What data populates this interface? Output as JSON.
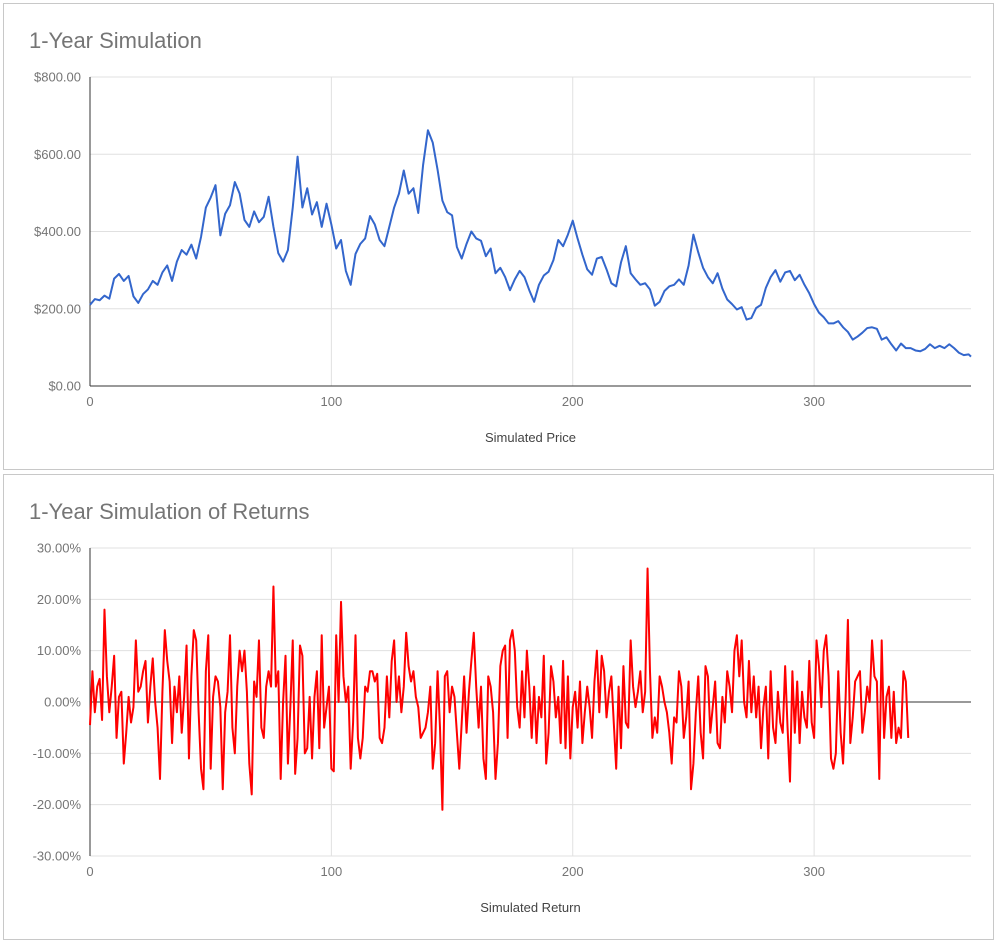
{
  "chart_data": [
    {
      "type": "line",
      "title": "1-Year Simulation",
      "xlabel": "Simulated Price",
      "ylabel": "",
      "xlim": [
        0,
        365
      ],
      "ylim": [
        0,
        800
      ],
      "x_ticks": [
        0,
        100,
        200,
        300
      ],
      "x_tick_labels": [
        "0",
        "100",
        "200",
        "300"
      ],
      "y_ticks": [
        0,
        200,
        400,
        600,
        800
      ],
      "y_tick_labels": [
        "$0.00",
        "$200.00",
        "$400.00",
        "$600.00",
        "$800.00"
      ],
      "grid": true,
      "legend": "none",
      "colors": {
        "line": "#3366cc",
        "grid": "#e0e0e0",
        "axis": "#333333"
      },
      "series": [
        {
          "points": [
            [
              0,
              210
            ],
            [
              2,
              225
            ],
            [
              4,
              222
            ],
            [
              6,
              234
            ],
            [
              8,
              226
            ],
            [
              10,
              278
            ],
            [
              12,
              290
            ],
            [
              14,
              272
            ],
            [
              16,
              285
            ],
            [
              18,
              232
            ],
            [
              20,
              215
            ],
            [
              22,
              238
            ],
            [
              24,
              250
            ],
            [
              26,
              272
            ],
            [
              28,
              262
            ],
            [
              30,
              294
            ],
            [
              32,
              312
            ],
            [
              34,
              272
            ],
            [
              36,
              322
            ],
            [
              38,
              352
            ],
            [
              40,
              340
            ],
            [
              42,
              366
            ],
            [
              44,
              330
            ],
            [
              46,
              386
            ],
            [
              48,
              462
            ],
            [
              50,
              488
            ],
            [
              52,
              520
            ],
            [
              54,
              390
            ],
            [
              56,
              446
            ],
            [
              58,
              468
            ],
            [
              60,
              528
            ],
            [
              62,
              498
            ],
            [
              64,
              430
            ],
            [
              66,
              412
            ],
            [
              68,
              452
            ],
            [
              70,
              424
            ],
            [
              72,
              438
            ],
            [
              74,
              490
            ],
            [
              76,
              412
            ],
            [
              78,
              344
            ],
            [
              80,
              322
            ],
            [
              82,
              352
            ],
            [
              84,
              462
            ],
            [
              86,
              594
            ],
            [
              88,
              462
            ],
            [
              90,
              512
            ],
            [
              92,
              444
            ],
            [
              94,
              476
            ],
            [
              96,
              412
            ],
            [
              98,
              472
            ],
            [
              100,
              418
            ],
            [
              102,
              356
            ],
            [
              104,
              378
            ],
            [
              106,
              298
            ],
            [
              108,
              262
            ],
            [
              110,
              342
            ],
            [
              112,
              368
            ],
            [
              114,
              382
            ],
            [
              116,
              440
            ],
            [
              118,
              418
            ],
            [
              120,
              378
            ],
            [
              122,
              362
            ],
            [
              124,
              412
            ],
            [
              126,
              462
            ],
            [
              128,
              498
            ],
            [
              130,
              558
            ],
            [
              132,
              498
            ],
            [
              134,
              512
            ],
            [
              136,
              448
            ],
            [
              138,
              572
            ],
            [
              140,
              662
            ],
            [
              142,
              630
            ],
            [
              144,
              560
            ],
            [
              146,
              480
            ],
            [
              148,
              450
            ],
            [
              150,
              442
            ],
            [
              152,
              360
            ],
            [
              154,
              330
            ],
            [
              156,
              368
            ],
            [
              158,
              400
            ],
            [
              160,
              382
            ],
            [
              162,
              376
            ],
            [
              164,
              336
            ],
            [
              166,
              356
            ],
            [
              168,
              292
            ],
            [
              170,
              306
            ],
            [
              172,
              282
            ],
            [
              174,
              248
            ],
            [
              176,
              276
            ],
            [
              178,
              298
            ],
            [
              180,
              282
            ],
            [
              182,
              248
            ],
            [
              184,
              218
            ],
            [
              186,
              262
            ],
            [
              188,
              286
            ],
            [
              190,
              296
            ],
            [
              192,
              326
            ],
            [
              194,
              378
            ],
            [
              196,
              362
            ],
            [
              198,
              392
            ],
            [
              200,
              428
            ],
            [
              202,
              382
            ],
            [
              204,
              340
            ],
            [
              206,
              302
            ],
            [
              208,
              288
            ],
            [
              210,
              330
            ],
            [
              212,
              334
            ],
            [
              214,
              302
            ],
            [
              216,
              266
            ],
            [
              218,
              258
            ],
            [
              220,
              320
            ],
            [
              222,
              362
            ],
            [
              224,
              292
            ],
            [
              226,
              276
            ],
            [
              228,
              262
            ],
            [
              230,
              266
            ],
            [
              232,
              250
            ],
            [
              234,
              208
            ],
            [
              236,
              218
            ],
            [
              238,
              246
            ],
            [
              240,
              258
            ],
            [
              242,
              262
            ],
            [
              244,
              276
            ],
            [
              246,
              262
            ],
            [
              248,
              312
            ],
            [
              250,
              392
            ],
            [
              252,
              346
            ],
            [
              254,
              306
            ],
            [
              256,
              282
            ],
            [
              258,
              266
            ],
            [
              260,
              292
            ],
            [
              262,
              252
            ],
            [
              264,
              224
            ],
            [
              266,
              212
            ],
            [
              268,
              198
            ],
            [
              270,
              204
            ],
            [
              272,
              172
            ],
            [
              274,
              176
            ],
            [
              276,
              202
            ],
            [
              278,
              210
            ],
            [
              280,
              254
            ],
            [
              282,
              282
            ],
            [
              284,
              300
            ],
            [
              286,
              270
            ],
            [
              288,
              294
            ],
            [
              290,
              298
            ],
            [
              292,
              274
            ],
            [
              294,
              288
            ],
            [
              296,
              262
            ],
            [
              298,
              240
            ],
            [
              300,
              212
            ],
            [
              302,
              190
            ],
            [
              304,
              178
            ],
            [
              306,
              162
            ],
            [
              308,
              162
            ],
            [
              310,
              168
            ],
            [
              312,
              152
            ],
            [
              314,
              140
            ],
            [
              316,
              120
            ],
            [
              318,
              128
            ],
            [
              320,
              138
            ],
            [
              322,
              150
            ],
            [
              324,
              152
            ],
            [
              326,
              148
            ],
            [
              328,
              120
            ],
            [
              330,
              126
            ],
            [
              332,
              108
            ],
            [
              334,
              92
            ],
            [
              336,
              110
            ],
            [
              338,
              98
            ],
            [
              340,
              98
            ],
            [
              342,
              92
            ],
            [
              344,
              90
            ],
            [
              346,
              96
            ],
            [
              348,
              108
            ],
            [
              350,
              98
            ],
            [
              352,
              104
            ],
            [
              354,
              98
            ],
            [
              356,
              108
            ],
            [
              358,
              98
            ],
            [
              360,
              86
            ],
            [
              362,
              80
            ],
            [
              364,
              82
            ],
            [
              365,
              76
            ]
          ]
        }
      ]
    },
    {
      "type": "line",
      "title": "1-Year Simulation of Returns",
      "xlabel": "Simulated Return",
      "ylabel": "",
      "xlim": [
        0,
        365
      ],
      "ylim": [
        -30,
        30
      ],
      "x_ticks": [
        0,
        100,
        200,
        300
      ],
      "x_tick_labels": [
        "0",
        "100",
        "200",
        "300"
      ],
      "y_ticks": [
        -30,
        -20,
        -10,
        0,
        10,
        20,
        30
      ],
      "y_tick_labels": [
        "-30.00%",
        "-20.00%",
        "-10.00%",
        "0.00%",
        "10.00%",
        "20.00%",
        "30.00%"
      ],
      "grid": true,
      "legend": "none",
      "colors": {
        "line": "#ff0000",
        "grid": "#e0e0e0",
        "axis": "#333333",
        "zero": "#333333"
      },
      "series": [
        {
          "values": [
            -4.5,
            6,
            -2,
            3,
            4.5,
            -3.5,
            18,
            5,
            -2,
            3,
            9,
            -7,
            1,
            2,
            -12,
            -6,
            1,
            -4,
            -1,
            12,
            2,
            3,
            6,
            8,
            -4,
            3,
            8.5,
            0,
            -5,
            -15,
            2,
            14,
            8,
            4,
            -8,
            3,
            -2,
            5,
            -6,
            1,
            11,
            -11,
            5,
            14,
            12,
            -2,
            -13,
            -17,
            6,
            13,
            -13,
            1,
            5,
            4,
            -1,
            -17,
            -2,
            2,
            13,
            -5,
            -10,
            3,
            10,
            6,
            10,
            2,
            -12,
            -18,
            4,
            1,
            12,
            -5,
            -7,
            3,
            6,
            3,
            22.5,
            3,
            6,
            -15,
            0,
            9,
            -12,
            -1,
            12,
            -14,
            -7,
            11,
            9,
            -10,
            -9,
            1,
            -11,
            1,
            6,
            -9,
            13,
            -5,
            -1,
            3,
            -13,
            -13.5,
            13,
            0,
            19.5,
            5,
            0,
            3,
            -13,
            -4,
            13,
            -7,
            -11,
            -7,
            3,
            2,
            6,
            6,
            4,
            5.5,
            -7,
            -8,
            -5,
            5,
            -3,
            8,
            12,
            0,
            5,
            -2,
            3,
            13.5,
            7,
            4,
            6,
            1,
            -1,
            -7,
            -6,
            -5,
            -2,
            3,
            -13,
            -8,
            6,
            -5,
            -21,
            5,
            6,
            -2,
            3,
            1,
            -6,
            -13,
            -4,
            5,
            -6,
            2,
            8,
            13.5,
            3,
            -5,
            3,
            -11,
            -15,
            5,
            3,
            -2,
            -15,
            -8,
            7,
            10,
            11,
            -7,
            12,
            14,
            10,
            -1,
            -5,
            6,
            -3,
            10,
            3,
            -7,
            3,
            -8,
            1,
            -3,
            9,
            -12,
            -6,
            7,
            4,
            -3,
            1,
            -8,
            8,
            -9,
            5,
            -11,
            -1,
            2,
            -5,
            4,
            -8,
            -2,
            3,
            -1,
            -7,
            4,
            10,
            -2,
            9,
            6,
            -3,
            2,
            5,
            -4,
            -13,
            3,
            -9,
            7,
            -4,
            -5,
            12,
            3,
            -1,
            2,
            6,
            -2,
            2,
            26,
            6,
            -7,
            -3,
            -6,
            5,
            3,
            0,
            -2,
            -6,
            -12,
            -3,
            -4,
            6,
            3,
            -7,
            -3,
            4,
            -17,
            -12,
            -2,
            5,
            -6,
            -11,
            7,
            5,
            -6,
            -1,
            4,
            -8,
            -9,
            1,
            -4,
            6,
            3,
            -2,
            10,
            13,
            5,
            12,
            0,
            -3,
            8,
            -2,
            5,
            -3,
            3,
            -9,
            -1,
            3,
            -11,
            6,
            -5,
            -8,
            2,
            -4,
            -6,
            7,
            -5,
            -15.5,
            6,
            -6,
            4,
            -8,
            2,
            -3,
            -5,
            8,
            -4,
            -7,
            12,
            7,
            -1,
            10,
            13,
            5,
            -11,
            -13,
            -10,
            6,
            -6,
            -12,
            0,
            16,
            -8,
            -3,
            4,
            5,
            6,
            -6,
            -2,
            3,
            0,
            12,
            5,
            4,
            -15,
            12,
            -7,
            1,
            3,
            -7,
            2,
            -8,
            -5,
            -7,
            6,
            4,
            -7
          ]
        }
      ]
    }
  ]
}
